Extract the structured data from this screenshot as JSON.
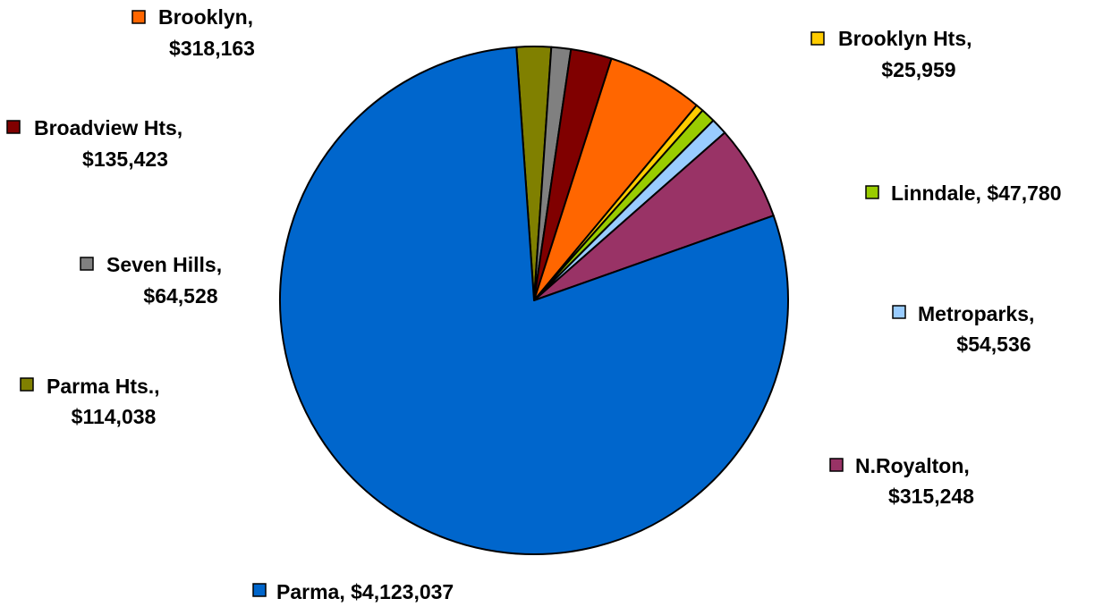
{
  "chart_data": {
    "type": "pie",
    "title": "",
    "start_angle_deg": -4,
    "direction": "clockwise",
    "slices": [
      {
        "name": "Parma Hts.",
        "value": 114038,
        "color": "#808000",
        "label_lines": [
          "Parma Hts.,",
          "$114,038"
        ]
      },
      {
        "name": "Seven Hills",
        "value": 64528,
        "color": "#808080",
        "label_lines": [
          "Seven Hills,",
          "$64,528"
        ]
      },
      {
        "name": "Broadview Hts",
        "value": 135423,
        "color": "#800000",
        "label_lines": [
          "Broadview Hts,",
          "$135,423"
        ]
      },
      {
        "name": "Brooklyn",
        "value": 318163,
        "color": "#FF6600",
        "label_lines": [
          "Brooklyn,",
          "$318,163"
        ]
      },
      {
        "name": "Brooklyn Hts",
        "value": 25959,
        "color": "#FFCC00",
        "label_lines": [
          "Brooklyn Hts,",
          "$25,959"
        ]
      },
      {
        "name": "Linndale",
        "value": 47780,
        "color": "#99CC00",
        "label_lines": [
          "Linndale, $47,780"
        ]
      },
      {
        "name": "Metroparks",
        "value": 54536,
        "color": "#99CCFF",
        "label_lines": [
          "Metroparks,",
          "$54,536"
        ]
      },
      {
        "name": "N.Royalton",
        "value": 315248,
        "color": "#993366",
        "label_lines": [
          "N.Royalton,",
          "$315,248"
        ]
      },
      {
        "name": "Parma",
        "value": 4123037,
        "color": "#0066CC",
        "label_lines": [
          "Parma, $4,123,037"
        ]
      }
    ]
  }
}
